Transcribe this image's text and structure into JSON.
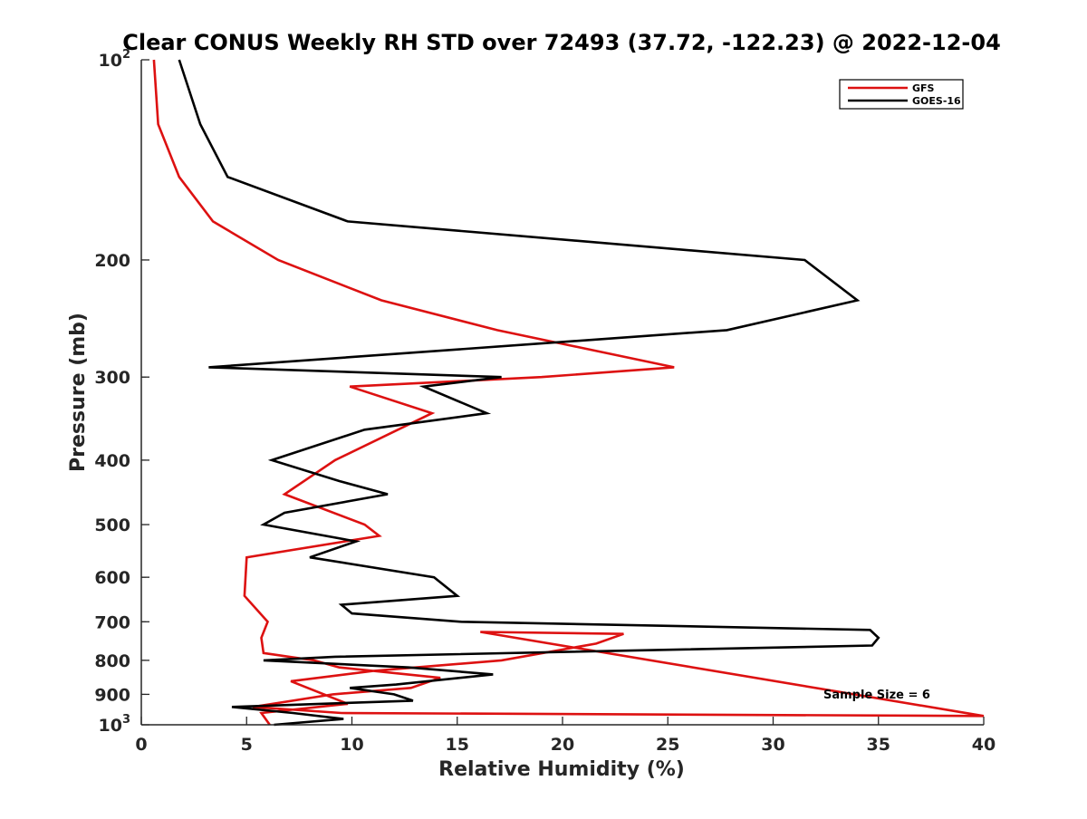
{
  "chart_data": {
    "type": "line",
    "title": "Clear CONUS Weekly RH STD over 72493 (37.72, -122.23) @ 2022-12-04",
    "xlabel": "Relative Humidity (%)",
    "ylabel": "Pressure (mb)",
    "xlim": [
      0,
      40
    ],
    "ylim": [
      100,
      1000
    ],
    "y_scale": "log",
    "y_reversed": true,
    "x_ticks": [
      "0",
      "5",
      "10",
      "15",
      "20",
      "25",
      "30",
      "35",
      "40"
    ],
    "x_tick_values": [
      0,
      5,
      10,
      15,
      20,
      25,
      30,
      35,
      40
    ],
    "y_ticks": [
      {
        "value": 100,
        "base": "10",
        "exp": "2"
      },
      {
        "value": 200,
        "label": "200"
      },
      {
        "value": 300,
        "label": "300"
      },
      {
        "value": 400,
        "label": "400"
      },
      {
        "value": 500,
        "label": "500"
      },
      {
        "value": 600,
        "label": "600"
      },
      {
        "value": 700,
        "label": "700"
      },
      {
        "value": 800,
        "label": "800"
      },
      {
        "value": 900,
        "label": "900"
      },
      {
        "value": 1000,
        "base": "10",
        "exp": "3"
      }
    ],
    "grid": false,
    "legend_position": "top-right",
    "annotation": "Sample Size = 6",
    "series": [
      {
        "name": "GFS",
        "color": "#dd1111",
        "points": [
          [
            0.6,
            100
          ],
          [
            0.8,
            125
          ],
          [
            1.8,
            150
          ],
          [
            3.4,
            175
          ],
          [
            6.5,
            200
          ],
          [
            11.4,
            230
          ],
          [
            16.9,
            255
          ],
          [
            25.3,
            290
          ],
          [
            19.0,
            300
          ],
          [
            9.9,
            310
          ],
          [
            13.8,
            340
          ],
          [
            9.2,
            400
          ],
          [
            6.8,
            450
          ],
          [
            10.6,
            500
          ],
          [
            11.3,
            520
          ],
          [
            5.0,
            560
          ],
          [
            4.9,
            640
          ],
          [
            6.0,
            700
          ],
          [
            5.7,
            740
          ],
          [
            5.8,
            780
          ],
          [
            8.2,
            800
          ],
          [
            9.4,
            820
          ],
          [
            14.2,
            850
          ],
          [
            12.8,
            880
          ],
          [
            9.1,
            900
          ],
          [
            5.3,
            940
          ],
          [
            9.5,
            960
          ],
          [
            40.0,
            970
          ],
          [
            16.1,
            725
          ],
          [
            22.9,
            730
          ],
          [
            21.6,
            755
          ],
          [
            17.1,
            800
          ],
          [
            11.0,
            830
          ],
          [
            7.1,
            860
          ],
          [
            9.8,
            930
          ],
          [
            5.7,
            960
          ],
          [
            6.1,
            1000
          ]
        ]
      },
      {
        "name": "GOES-16",
        "color": "#000000",
        "points": [
          [
            1.8,
            100
          ],
          [
            2.8,
            125
          ],
          [
            4.1,
            150
          ],
          [
            9.8,
            175
          ],
          [
            31.5,
            200
          ],
          [
            34.0,
            230
          ],
          [
            27.8,
            255
          ],
          [
            3.2,
            290
          ],
          [
            17.1,
            300
          ],
          [
            13.4,
            310
          ],
          [
            16.4,
            340
          ],
          [
            10.6,
            360
          ],
          [
            6.2,
            400
          ],
          [
            9.4,
            430
          ],
          [
            11.7,
            450
          ],
          [
            6.8,
            480
          ],
          [
            5.8,
            500
          ],
          [
            10.2,
            530
          ],
          [
            8.0,
            560
          ],
          [
            13.9,
            600
          ],
          [
            15.0,
            640
          ],
          [
            9.5,
            660
          ],
          [
            10.0,
            680
          ],
          [
            15.2,
            700
          ],
          [
            34.6,
            720
          ],
          [
            35.0,
            740
          ],
          [
            34.7,
            760
          ],
          [
            9.2,
            790
          ],
          [
            5.8,
            800
          ],
          [
            12.7,
            820
          ],
          [
            16.7,
            840
          ],
          [
            12.1,
            870
          ],
          [
            9.9,
            880
          ],
          [
            12.0,
            900
          ],
          [
            12.9,
            920
          ],
          [
            4.3,
            940
          ],
          [
            7.2,
            960
          ],
          [
            9.6,
            980
          ],
          [
            6.3,
            1000
          ]
        ]
      }
    ]
  }
}
